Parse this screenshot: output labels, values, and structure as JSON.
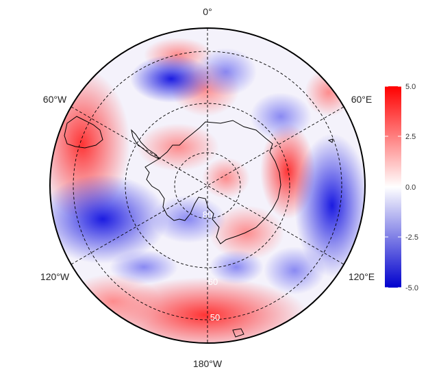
{
  "map": {
    "projection": "south-polar-stereographic",
    "longitude_labels": {
      "top": "0°",
      "upper_left": "60°W",
      "upper_right": "60°E",
      "lower_left": "120°W",
      "lower_right": "120°E",
      "bottom": "180°W"
    },
    "latitude_labels": [
      "80",
      "60",
      "50"
    ],
    "gridlines": "dashed",
    "coastlines": "black outline",
    "colorbar": {
      "ticks": [
        "5.0",
        "2.5",
        "0.0",
        "-2.5",
        "-5.0"
      ],
      "min": -5.0,
      "max": 5.0,
      "colors": {
        "high": "#ff0000",
        "mid": "#ffffff",
        "low": "#0000cd"
      }
    }
  }
}
